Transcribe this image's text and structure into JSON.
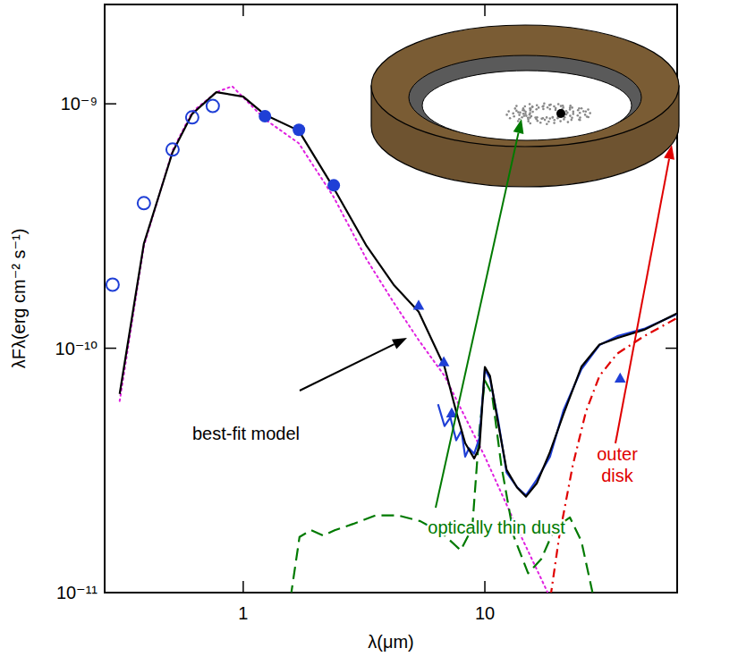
{
  "chart_data": {
    "type": "line",
    "x_label": "λ(μm)",
    "y_label": "λFλ(erg cm⁻² s⁻¹)",
    "log": true,
    "grid": false,
    "xlim": [
      0.267,
      62.5
    ],
    "ylim": [
      1e-11,
      2.55e-09
    ],
    "xticks": [
      1,
      10
    ],
    "yticks": [
      {
        "value": 1e-11,
        "label": "10⁻¹¹"
      },
      {
        "value": 1e-10,
        "label": "10⁻¹⁰"
      },
      {
        "value": 1e-09,
        "label": "10⁻⁹"
      }
    ],
    "series": [
      {
        "type": "line",
        "color": "#e020e0",
        "line_style": "dotted",
        "marker": "none",
        "x": [
          0.308,
          0.388,
          0.51,
          0.615,
          0.774,
          0.9,
          1.227,
          1.697,
          2.366,
          3.24,
          4.19,
          5.32,
          6.81,
          10.0,
          13.6,
          18.2
        ],
        "values": [
          6.08e-11,
          2.62e-10,
          6.45e-10,
          9.27e-10,
          1.116e-09,
          1.18e-09,
          8.66e-10,
          6.9e-10,
          4.16e-10,
          2.31e-10,
          1.54e-10,
          1.08e-10,
          7.7e-11,
          3.6e-11,
          1.84e-11,
          1e-11
        ]
      },
      {
        "type": "line",
        "color": "#007a00",
        "line_style": "dashed",
        "marker": "none",
        "x": [
          1.53,
          1.71,
          1.91,
          2.15,
          2.39,
          2.85,
          3.53,
          4.37,
          5.41,
          6.7,
          7.94,
          8.87,
          9.5,
          10.0,
          10.7,
          11.7,
          13.2,
          15.1,
          17.1,
          19.5,
          22.5,
          25.1,
          29.3
        ],
        "values": [
          8e-12,
          1.69e-11,
          1.8e-11,
          1.71e-11,
          1.8e-11,
          1.91e-11,
          2.07e-11,
          2.07e-11,
          1.96e-11,
          1.74e-11,
          1.49e-11,
          1.84e-11,
          4.65e-11,
          7.38e-11,
          6.5e-11,
          3.31e-11,
          1.69e-11,
          1.2e-11,
          1.37e-11,
          1.84e-11,
          2.03e-11,
          1.62e-11,
          8e-12
        ]
      },
      {
        "type": "line",
        "color": "#e00000",
        "line_style": "dash-dot",
        "marker": "none",
        "x": [
          18.2,
          20.3,
          23.1,
          26.2,
          29.8,
          35.3,
          45.6,
          62.5
        ],
        "values": [
          8e-12,
          1.69e-11,
          3.31e-11,
          5.5e-11,
          7.7e-11,
          9.5e-11,
          1.12e-10,
          1.33e-10
        ]
      },
      {
        "type": "line",
        "color": "#1f3fd6",
        "line_style": "solid",
        "marker": "none",
        "x": [
          6.4,
          6.81,
          7.2,
          7.61,
          8.0,
          8.29,
          8.6,
          9.03,
          9.5,
          10.0,
          10.5,
          11.3,
          12.3,
          13.6,
          14.8,
          16.4,
          18.6,
          21.2,
          25.1,
          29.8,
          35.3,
          45.6,
          62.5
        ],
        "values": [
          5.9e-11,
          4.8e-11,
          5.2e-11,
          4.2e-11,
          4.6e-11,
          3.6e-11,
          3.9e-11,
          3.7e-11,
          4.3e-11,
          8.2e-11,
          7.5e-11,
          5.2e-11,
          3.1e-11,
          2.7e-11,
          2.5e-11,
          2.9e-11,
          3.6e-11,
          5.6e-11,
          8.2e-11,
          1.03e-10,
          1.12e-10,
          1.2e-10,
          1.38e-10
        ]
      },
      {
        "type": "line",
        "color": "#000000",
        "line_style": "solid",
        "marker": "none",
        "x": [
          0.308,
          0.388,
          0.51,
          0.615,
          0.774,
          1.0,
          1.227,
          1.697,
          2.366,
          3.24,
          4.19,
          5.32,
          6.81,
          7.61,
          8.29,
          9.03,
          9.5,
          10.0,
          10.5,
          11.3,
          12.3,
          13.6,
          14.8,
          16.4,
          18.6,
          21.2,
          25.1,
          29.8,
          35.3,
          45.6,
          62.5
        ],
        "values": [
          6.5e-11,
          2.68e-10,
          6.34e-10,
          9.1e-10,
          1.116e-09,
          1.07e-09,
          9.04e-10,
          7.77e-10,
          4.53e-10,
          2.62e-10,
          1.82e-10,
          1.41e-10,
          8.38e-11,
          5.5e-11,
          4.09e-11,
          3.54e-11,
          3.92e-11,
          8.38e-11,
          7.7e-11,
          5.05e-11,
          3.18e-11,
          2.69e-11,
          2.47e-11,
          2.8e-11,
          3.76e-11,
          5.4e-11,
          8.4e-11,
          1.035e-10,
          1.1e-10,
          1.19e-10,
          1.39e-10
        ]
      },
      {
        "type": "scatter",
        "color": "#1f3fd6",
        "marker": "open-circle",
        "x": [
          0.288,
          0.388,
          0.51,
          0.615,
          0.748
        ],
        "values": [
          1.82e-10,
          3.92e-10,
          6.5e-10,
          8.8e-10,
          9.8e-10
        ]
      },
      {
        "type": "scatter",
        "color": "#1f3fd6",
        "marker": "circle",
        "x": [
          1.23,
          1.7,
          2.37
        ],
        "values": [
          8.9e-10,
          7.83e-10,
          4.64e-10
        ]
      },
      {
        "type": "scatter",
        "color": "#1f3fd6",
        "marker": "triangle",
        "x": [
          5.32,
          6.76,
          7.29,
          36.3
        ],
        "values": [
          1.49e-10,
          8.74e-11,
          5.4e-11,
          7.5e-11
        ]
      }
    ],
    "annotations": [
      {
        "text": "best-fit model",
        "color": "#000000"
      },
      {
        "text": "optically thin dust",
        "color": "#007a00"
      },
      {
        "text": "outer disk",
        "color": "#e00000"
      }
    ]
  }
}
